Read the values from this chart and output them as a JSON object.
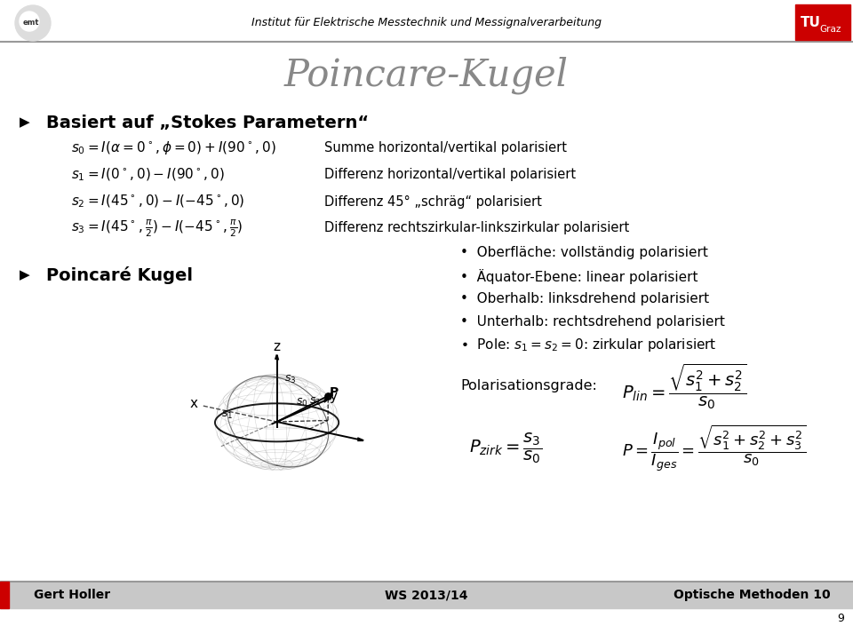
{
  "title": "Poincare-Kugel",
  "bg_color": "#ffffff",
  "header_text": "Institut für Elektrische Messtechnik und Messignalverarbeitung",
  "footer_left": "Gert Holler",
  "footer_center": "WS 2013/14",
  "footer_right": "Optische Methoden 10",
  "page_number": "9",
  "bullet1": "Basiert auf „Stokes Parametern“",
  "bullet2": "Poincaré Kugel",
  "eq_s0": "$s_0 = I(\\alpha=0^\\circ,\\phi=0)+I(90^\\circ,0)$",
  "eq_s1": "$s_1 = I(0^\\circ,0)-I(90^\\circ,0)$",
  "eq_s2": "$s_2 = I(45^\\circ,0)-I(-45^\\circ,0)$",
  "eq_s3": "$s_3 = I(45^\\circ,\\frac{\\pi}{2})-I(-45^\\circ,\\frac{\\pi}{2})$",
  "desc_s0": "Summe horizontal/vertikal polarisiert",
  "desc_s1": "Differenz horizontal/vertikal polarisiert",
  "desc_s2": "Differenz 45° „schräg“ polarisiert",
  "desc_s3": "Differenz rechtszirkular-linkszirkular polarisiert",
  "bullet_points": [
    "Oberfläche: vollständig polarisiert",
    "Äquator-Ebene: linear polarisiert",
    "Oberhalb: linksdrehend polarisiert",
    "Unterhalb: rechtsdrehend polarisiert",
    "Pole: $s_1=s_2=0$: zirkular polarisiert"
  ],
  "polarisation_label": "Polarisationsgrade:",
  "formula_plin": "$P_{lin} = \\dfrac{\\sqrt{s_1^2 + s_2^2}}{s_0}$",
  "formula_pzirk": "$P_{zirk} = \\dfrac{s_3}{s_0}$",
  "formula_p": "$P = \\dfrac{I_{pol}}{I_{ges}} = \\dfrac{\\sqrt{s_1^2 + s_2^2 + s_3^2}}{s_0}$",
  "red_color": "#cc0000",
  "footer_bg": "#c8c8c8",
  "header_bg": "#ffffff",
  "title_color": "#888888",
  "text_color": "#000000"
}
